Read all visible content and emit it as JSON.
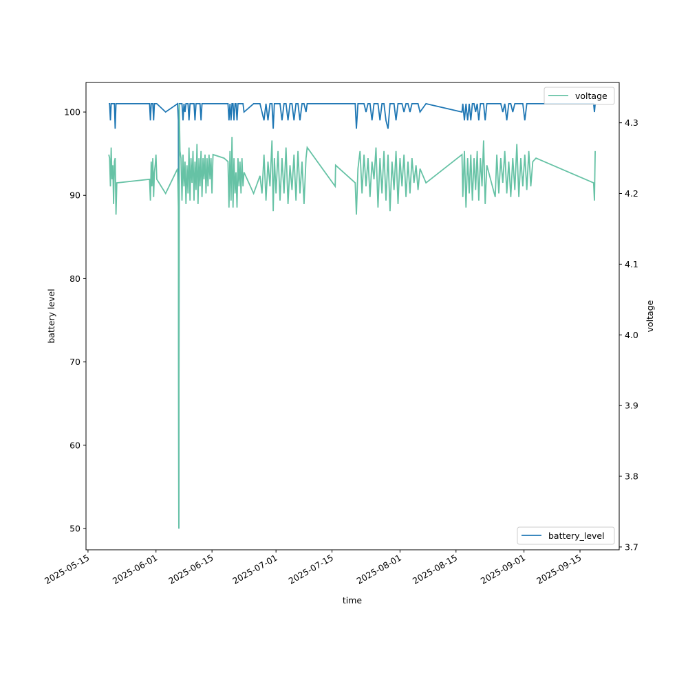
{
  "chart_data": {
    "type": "line",
    "title": "",
    "xlabel": "time",
    "ylabel_left": "battery level",
    "ylabel_right": "voltage",
    "x_origin_date": "2025-05-15",
    "x_unit": "days since 2025-05-15",
    "xlim_days": [
      -0.5,
      132.8
    ],
    "ylim_left": [
      47.45,
      103.55
    ],
    "ylim_right": [
      3.696,
      4.357
    ],
    "x_ticks": [
      {
        "day": 0,
        "label": "2025-05-15"
      },
      {
        "day": 17,
        "label": "2025-06-01"
      },
      {
        "day": 31,
        "label": "2025-06-15"
      },
      {
        "day": 47,
        "label": "2025-07-01"
      },
      {
        "day": 61,
        "label": "2025-07-15"
      },
      {
        "day": 78,
        "label": "2025-08-01"
      },
      {
        "day": 92,
        "label": "2025-08-15"
      },
      {
        "day": 109,
        "label": "2025-09-01"
      },
      {
        "day": 123,
        "label": "2025-09-15"
      }
    ],
    "y_ticks_left": [
      50,
      60,
      70,
      80,
      90,
      100
    ],
    "y_ticks_right": [
      "3.7",
      "3.8",
      "3.9",
      "4.0",
      "4.1",
      "4.2",
      "4.3"
    ],
    "grid": false,
    "legend": [
      {
        "name": "voltage",
        "placement": "upper-right",
        "color": "#66c2a5"
      },
      {
        "name": "battery_level",
        "placement": "lower-right",
        "color": "#1f77b4"
      }
    ],
    "series_colors": {
      "battery_level": "#1f77b4",
      "voltage": "#66c2a5"
    },
    "points_fields": [
      "day",
      "battery_level",
      "voltage"
    ],
    "points": [
      [
        5.2,
        101,
        4.255
      ],
      [
        5.4,
        101,
        4.25
      ],
      [
        5.6,
        99,
        4.21
      ],
      [
        5.8,
        101,
        4.265
      ],
      [
        6.0,
        101,
        4.22
      ],
      [
        6.2,
        101,
        4.24
      ],
      [
        6.4,
        101,
        4.185
      ],
      [
        6.6,
        101,
        4.245
      ],
      [
        6.8,
        98,
        4.25
      ],
      [
        7.0,
        101,
        4.17
      ],
      [
        7.2,
        101,
        4.215
      ],
      [
        15.4,
        101,
        4.22
      ],
      [
        15.6,
        99,
        4.19
      ],
      [
        15.8,
        101,
        4.245
      ],
      [
        16.0,
        101,
        4.21
      ],
      [
        16.2,
        101,
        4.25
      ],
      [
        16.4,
        99,
        4.195
      ],
      [
        16.6,
        101,
        4.23
      ],
      [
        16.8,
        101,
        4.24
      ],
      [
        17.0,
        101,
        4.255
      ],
      [
        17.2,
        101,
        4.22
      ],
      [
        19.4,
        100,
        4.2
      ],
      [
        22.4,
        101,
        4.235
      ],
      [
        22.6,
        99,
        4.18
      ],
      [
        22.7,
        50,
        3.726
      ],
      [
        22.8,
        101,
        4.327
      ],
      [
        23.0,
        101,
        4.26
      ],
      [
        23.25,
        101,
        4.25
      ],
      [
        23.5,
        101,
        4.19
      ],
      [
        23.75,
        99,
        4.255
      ],
      [
        24.0,
        101,
        4.21
      ],
      [
        24.25,
        100,
        4.245
      ],
      [
        24.5,
        101,
        4.185
      ],
      [
        24.75,
        101,
        4.24
      ],
      [
        25.0,
        101,
        4.2
      ],
      [
        25.25,
        99,
        4.265
      ],
      [
        25.5,
        101,
        4.19
      ],
      [
        25.75,
        101,
        4.25
      ],
      [
        26.0,
        101,
        4.215
      ],
      [
        26.25,
        101,
        4.26
      ],
      [
        26.5,
        101,
        4.19
      ],
      [
        26.75,
        99,
        4.245
      ],
      [
        27.0,
        101,
        4.205
      ],
      [
        27.25,
        101,
        4.27
      ],
      [
        27.5,
        101,
        4.185
      ],
      [
        27.75,
        101,
        4.25
      ],
      [
        28.0,
        101,
        4.21
      ],
      [
        28.25,
        99,
        4.26
      ],
      [
        28.5,
        101,
        4.195
      ],
      [
        28.75,
        101,
        4.25
      ],
      [
        29.0,
        101,
        4.22
      ],
      [
        29.25,
        101,
        4.255
      ],
      [
        29.5,
        101,
        4.2
      ],
      [
        29.75,
        101,
        4.25
      ],
      [
        30.0,
        101,
        4.21
      ],
      [
        30.25,
        101,
        4.255
      ],
      [
        30.5,
        101,
        4.22
      ],
      [
        30.75,
        101,
        4.25
      ],
      [
        31.0,
        101,
        4.2
      ],
      [
        31.25,
        101,
        4.255
      ],
      [
        34.0,
        101,
        4.25
      ],
      [
        35.0,
        101,
        4.245
      ],
      [
        35.25,
        99,
        4.18
      ],
      [
        35.5,
        101,
        4.26
      ],
      [
        35.75,
        99,
        4.19
      ],
      [
        36.0,
        101,
        4.28
      ],
      [
        36.25,
        101,
        4.18
      ],
      [
        36.5,
        99,
        4.25
      ],
      [
        36.75,
        101,
        4.2
      ],
      [
        37.0,
        101,
        4.23
      ],
      [
        37.25,
        99,
        4.18
      ],
      [
        37.5,
        101,
        4.25
      ],
      [
        37.75,
        101,
        4.21
      ],
      [
        38.0,
        101,
        4.245
      ],
      [
        38.25,
        101,
        4.2
      ],
      [
        38.5,
        101,
        4.25
      ],
      [
        38.75,
        101,
        4.21
      ],
      [
        39.0,
        100,
        4.23
      ],
      [
        41.4,
        101,
        4.2
      ],
      [
        43.0,
        101,
        4.225
      ],
      [
        43.5,
        100,
        4.2
      ],
      [
        44.0,
        99,
        4.255
      ],
      [
        44.5,
        101,
        4.19
      ],
      [
        45.0,
        99,
        4.245
      ],
      [
        45.5,
        101,
        4.21
      ],
      [
        46.0,
        101,
        4.275
      ],
      [
        46.3,
        98,
        4.175
      ],
      [
        46.6,
        101,
        4.25
      ],
      [
        47.0,
        101,
        4.2
      ],
      [
        47.5,
        101,
        4.26
      ],
      [
        48.0,
        101,
        4.19
      ],
      [
        48.5,
        99,
        4.25
      ],
      [
        49.0,
        101,
        4.2
      ],
      [
        49.5,
        101,
        4.265
      ],
      [
        50.0,
        99,
        4.185
      ],
      [
        50.5,
        101,
        4.24
      ],
      [
        51.0,
        101,
        4.205
      ],
      [
        51.5,
        99,
        4.255
      ],
      [
        52.0,
        101,
        4.19
      ],
      [
        52.5,
        101,
        4.26
      ],
      [
        53.0,
        99,
        4.2
      ],
      [
        53.5,
        101,
        4.245
      ],
      [
        54.0,
        101,
        4.185
      ],
      [
        54.5,
        100,
        4.25
      ],
      [
        54.8,
        101,
        4.265
      ],
      [
        61.8,
        101,
        4.21
      ],
      [
        61.9,
        101,
        4.24
      ],
      [
        66.8,
        101,
        4.215
      ],
      [
        67.1,
        98,
        4.17
      ],
      [
        67.5,
        101,
        4.235
      ],
      [
        68.0,
        101,
        4.26
      ],
      [
        68.5,
        101,
        4.2
      ],
      [
        69.0,
        101,
        4.255
      ],
      [
        69.5,
        100,
        4.21
      ],
      [
        70.0,
        101,
        4.25
      ],
      [
        70.5,
        101,
        4.195
      ],
      [
        71.0,
        99,
        4.245
      ],
      [
        71.5,
        101,
        4.22
      ],
      [
        72.0,
        101,
        4.265
      ],
      [
        72.5,
        101,
        4.18
      ],
      [
        73.0,
        99,
        4.25
      ],
      [
        73.5,
        101,
        4.2
      ],
      [
        74.0,
        101,
        4.26
      ],
      [
        74.5,
        99,
        4.19
      ],
      [
        75.0,
        98,
        4.255
      ],
      [
        75.5,
        101,
        4.175
      ],
      [
        76.0,
        101,
        4.245
      ],
      [
        76.5,
        101,
        4.205
      ],
      [
        77.0,
        99,
        4.26
      ],
      [
        77.5,
        101,
        4.185
      ],
      [
        78.0,
        101,
        4.25
      ],
      [
        78.5,
        101,
        4.21
      ],
      [
        79.0,
        100,
        4.255
      ],
      [
        79.5,
        101,
        4.195
      ],
      [
        80.0,
        101,
        4.245
      ],
      [
        80.5,
        100,
        4.2
      ],
      [
        81.0,
        101,
        4.25
      ],
      [
        81.5,
        101,
        4.215
      ],
      [
        82.0,
        101,
        4.24
      ],
      [
        82.5,
        101,
        4.205
      ],
      [
        83.0,
        100,
        4.235
      ],
      [
        84.5,
        101,
        4.215
      ],
      [
        93.5,
        100,
        4.255
      ],
      [
        93.7,
        101,
        4.195
      ],
      [
        94.1,
        99,
        4.26
      ],
      [
        94.5,
        101,
        4.18
      ],
      [
        94.9,
        99,
        4.25
      ],
      [
        95.3,
        101,
        4.2
      ],
      [
        95.7,
        99,
        4.255
      ],
      [
        96.1,
        101,
        4.19
      ],
      [
        96.5,
        101,
        4.25
      ],
      [
        96.9,
        100,
        4.205
      ],
      [
        97.3,
        101,
        4.26
      ],
      [
        97.7,
        99,
        4.19
      ],
      [
        98.1,
        101,
        4.25
      ],
      [
        98.5,
        101,
        4.21
      ],
      [
        98.9,
        101,
        4.275
      ],
      [
        99.3,
        99,
        4.185
      ],
      [
        99.7,
        101,
        4.24
      ],
      [
        101.8,
        101,
        4.195
      ],
      [
        102.2,
        101,
        4.255
      ],
      [
        102.7,
        101,
        4.2
      ],
      [
        103.2,
        101,
        4.25
      ],
      [
        103.7,
        100,
        4.215
      ],
      [
        104.2,
        101,
        4.26
      ],
      [
        104.7,
        99,
        4.2
      ],
      [
        105.2,
        101,
        4.245
      ],
      [
        105.7,
        101,
        4.195
      ],
      [
        106.2,
        100,
        4.25
      ],
      [
        106.7,
        101,
        4.205
      ],
      [
        107.2,
        101,
        4.27
      ],
      [
        107.7,
        101,
        4.195
      ],
      [
        108.2,
        101,
        4.25
      ],
      [
        108.7,
        101,
        4.21
      ],
      [
        109.2,
        99,
        4.255
      ],
      [
        109.7,
        101,
        4.205
      ],
      [
        110.2,
        101,
        4.26
      ],
      [
        110.7,
        101,
        4.21
      ],
      [
        111.2,
        101,
        4.245
      ],
      [
        112.0,
        101,
        4.25
      ],
      [
        126.4,
        101,
        4.215
      ],
      [
        126.6,
        100,
        4.19
      ],
      [
        126.8,
        101,
        4.26
      ]
    ]
  }
}
